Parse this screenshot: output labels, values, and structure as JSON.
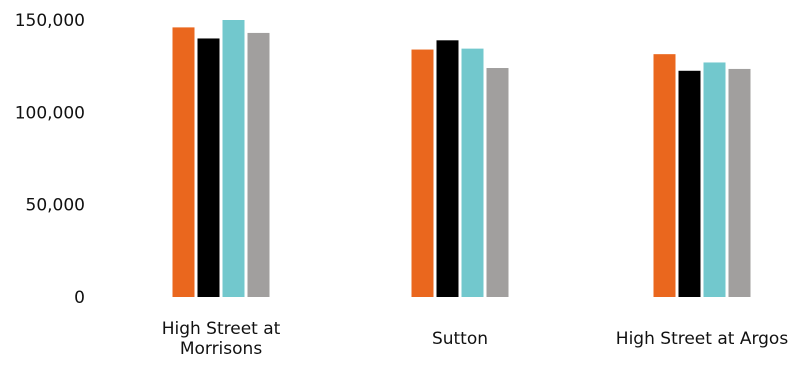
{
  "chart_data": {
    "type": "bar",
    "title": "",
    "xlabel": "",
    "ylabel": "",
    "ylim": [
      0,
      150000
    ],
    "yticks": [
      0,
      50000,
      100000,
      150000
    ],
    "ytick_labels": [
      "0",
      "50,000",
      "100,000",
      "150,000"
    ],
    "grid": false,
    "legend": "none",
    "categories": [
      [
        "High Street at",
        "Morrisons"
      ],
      [
        "Sutton"
      ],
      [
        "High Street at Argos"
      ]
    ],
    "series": [
      {
        "color": "#ea671e",
        "values": [
          146000,
          134000,
          131500
        ]
      },
      {
        "color": "#000000",
        "values": [
          140000,
          139000,
          122500
        ]
      },
      {
        "color": "#72c8cd",
        "values": [
          150000,
          134500,
          127000
        ]
      },
      {
        "color": "#a19f9e",
        "values": [
          143000,
          124000,
          123500
        ]
      }
    ]
  }
}
